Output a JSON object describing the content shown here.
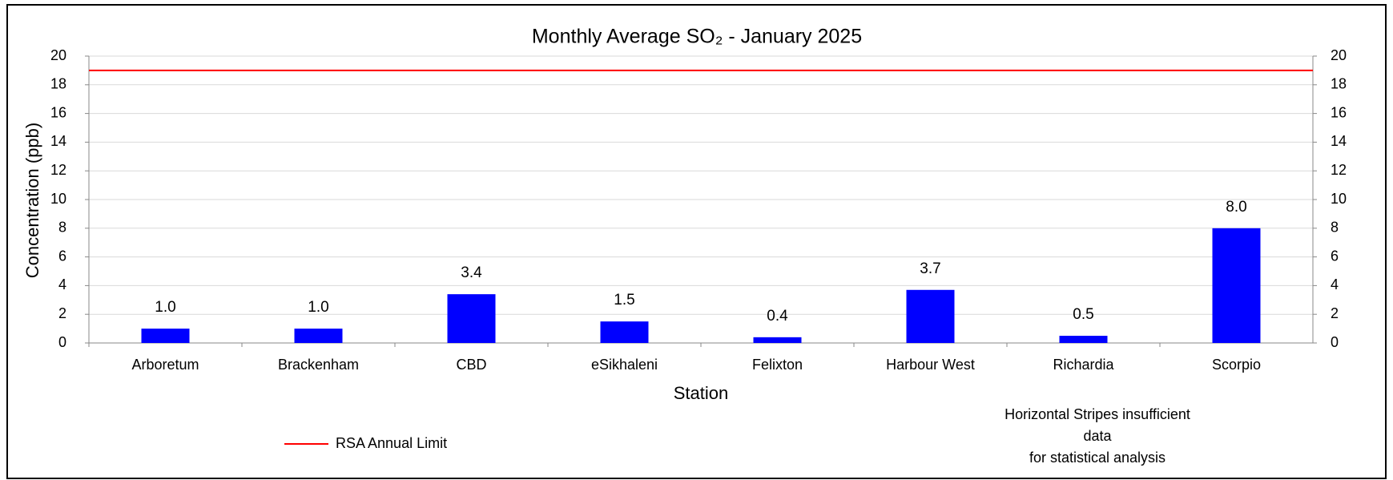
{
  "chart_data": {
    "type": "bar",
    "title": "Monthly Average SO₂ - January 2025",
    "x_label": "Station",
    "y_label": "Concentration (ppb)",
    "categories": [
      "Arboretum",
      "Brackenham",
      "CBD",
      "eSikhaleni",
      "Felixton",
      "Harbour West",
      "Richardia",
      "Scorpio"
    ],
    "values": [
      1.0,
      1.0,
      3.4,
      1.5,
      0.4,
      3.7,
      0.5,
      8.0
    ],
    "value_labels": [
      "1.0",
      "1.0",
      "3.4",
      "1.5",
      "0.4",
      "3.7",
      "0.5",
      "8.0"
    ],
    "color": "#0000ff",
    "ylim": [
      0,
      20
    ],
    "yticks": [
      0,
      2,
      4,
      6,
      8,
      10,
      12,
      14,
      16,
      18,
      20
    ],
    "y2lim": [
      0,
      20
    ],
    "y2ticks": [
      0,
      2,
      4,
      6,
      8,
      10,
      12,
      14,
      16,
      18,
      20
    ],
    "grid": true,
    "limit": {
      "name": "RSA Annual Limit",
      "value": 19,
      "color": "#ff0000"
    },
    "annotation": [
      "Horizontal Stripes insufficient",
      "data",
      "for statistical analysis"
    ]
  }
}
